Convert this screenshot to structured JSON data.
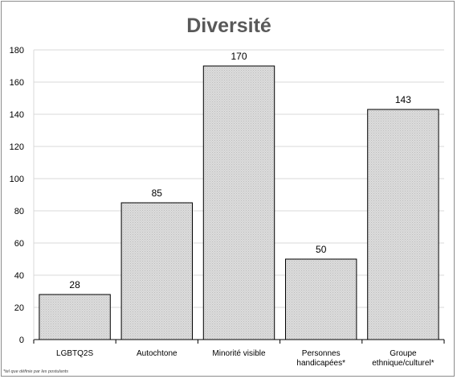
{
  "chart_data": {
    "type": "bar",
    "title": "Diversité",
    "categories": [
      [
        "LGBTQ2S"
      ],
      [
        "Autochtone"
      ],
      [
        "Minorité visible"
      ],
      [
        "Personnes",
        "handicapées*"
      ],
      [
        "Groupe",
        "ethnique/culturel*"
      ]
    ],
    "values": [
      28,
      85,
      170,
      50,
      143
    ],
    "ylim": [
      0,
      180
    ],
    "yticks": [
      0,
      20,
      40,
      60,
      80,
      100,
      120,
      140,
      160,
      180
    ],
    "grid": true,
    "legend": "none",
    "bar_color": "#d9d9d9",
    "footnote": "*tel que définie par les postulants"
  }
}
